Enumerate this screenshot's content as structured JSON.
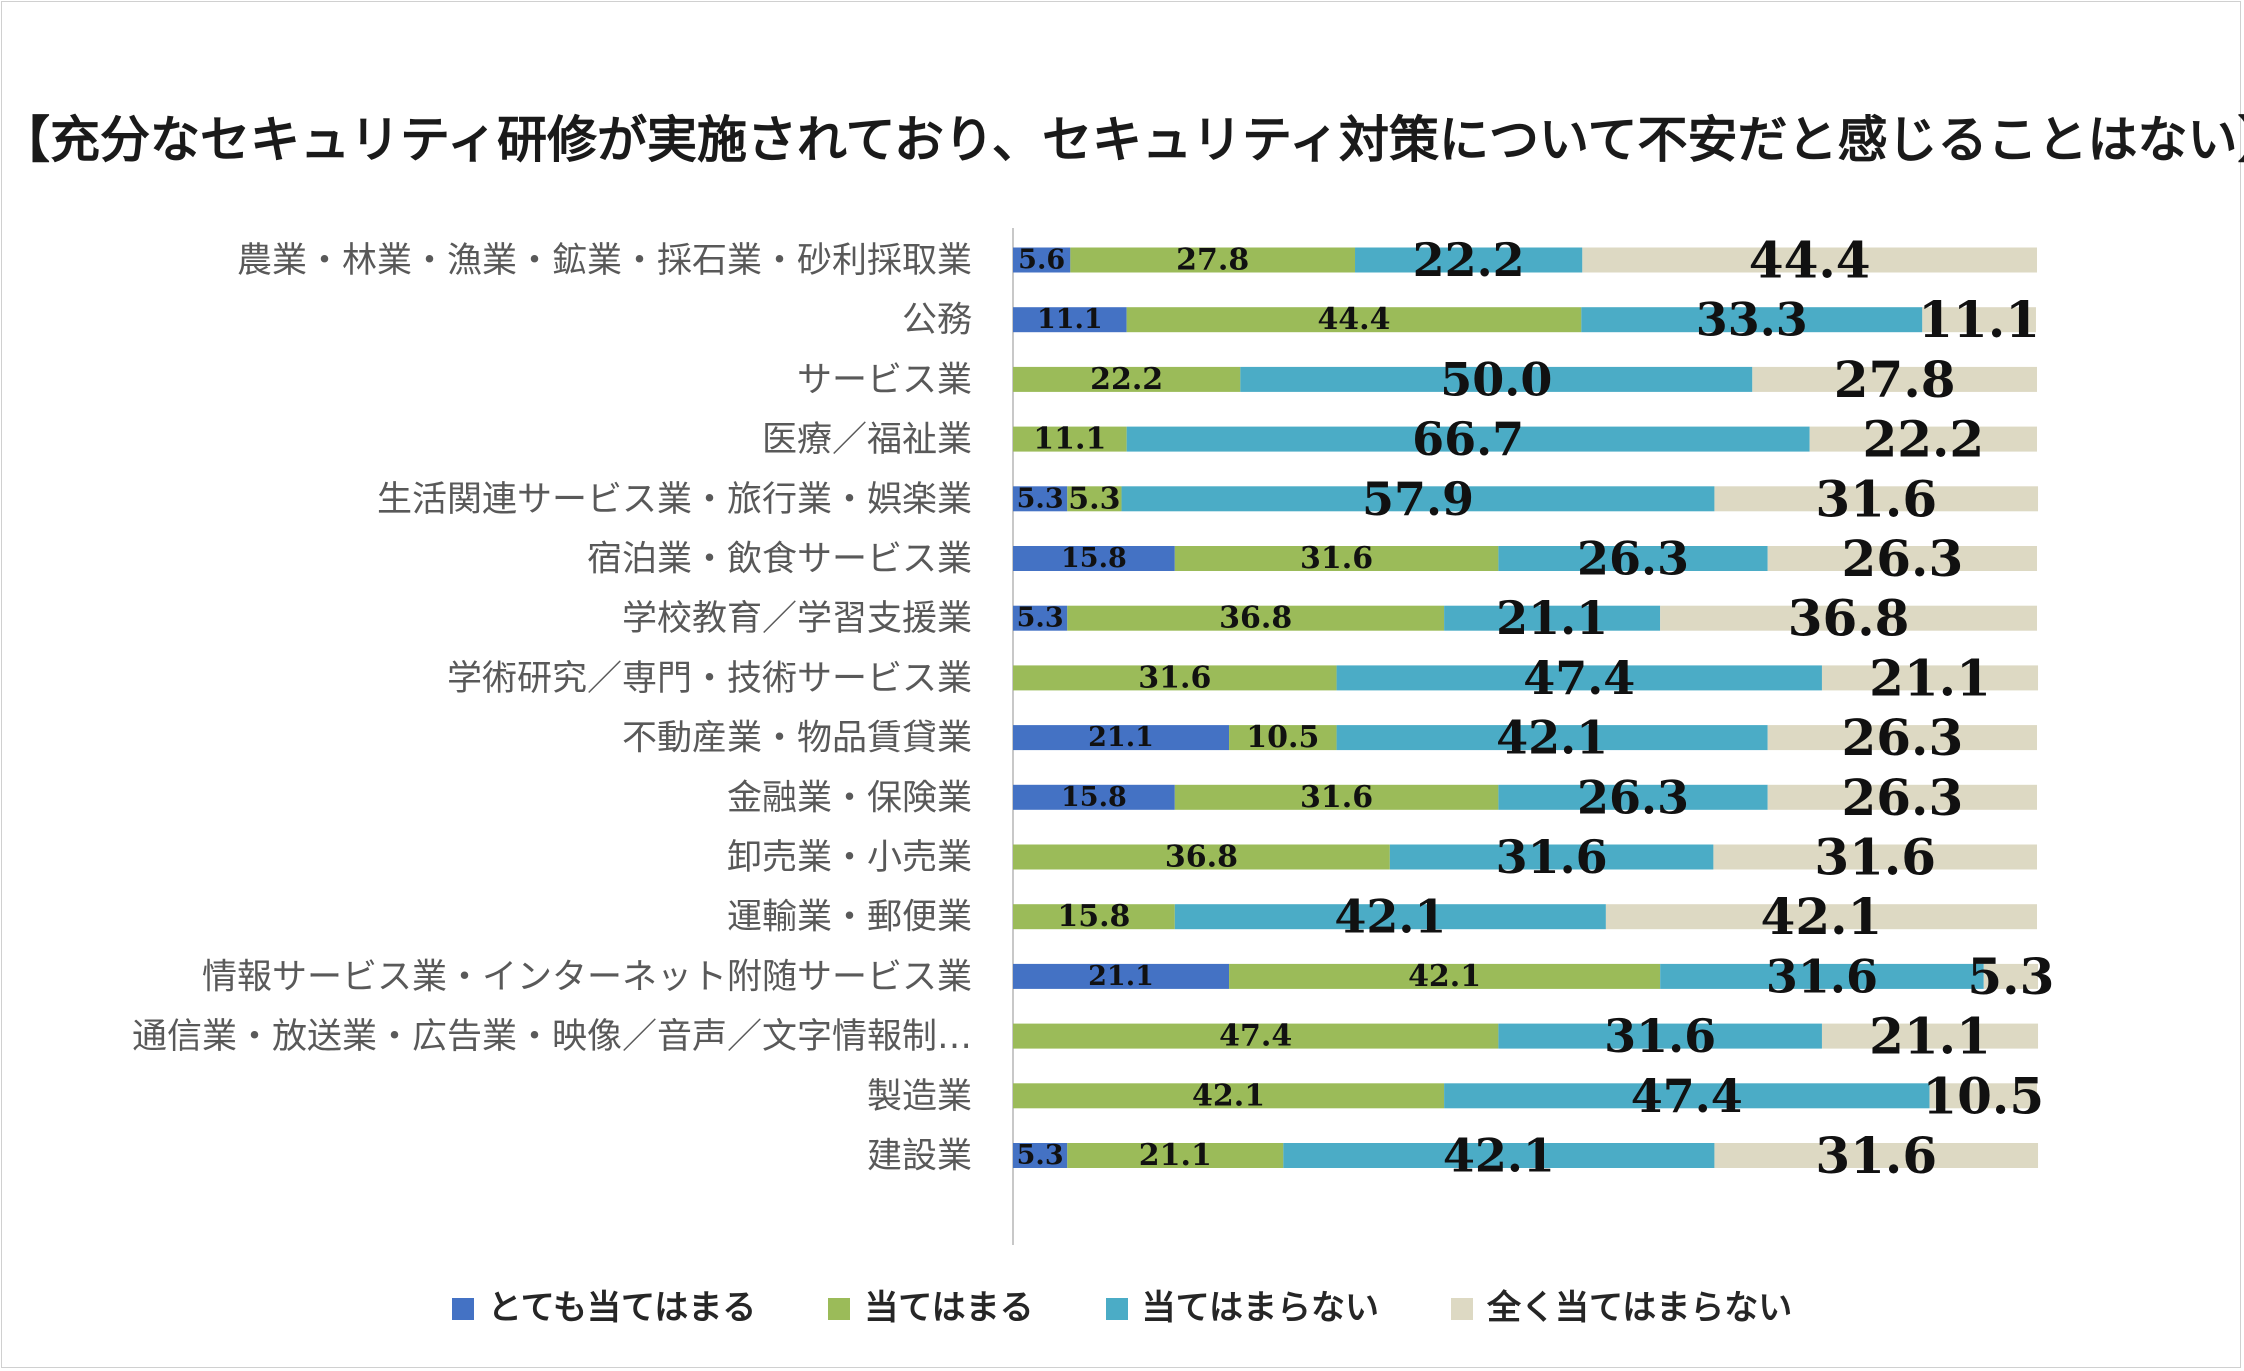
{
  "chart_data": {
    "type": "bar",
    "orientation": "horizontal",
    "stacked": true,
    "title": "【充分なセキュリティ研修が実施されており、セキュリティ対策について不安だと感じることはない】",
    "categories": [
      "農業・林業・漁業・鉱業・採石業・砂利採取業",
      "公務",
      "サービス業",
      "医療／福祉業",
      "生活関連サービス業・旅行業・娯楽業",
      "宿泊業・飲食サービス業",
      "学校教育／学習支援業",
      "学術研究／専門・技術サービス業",
      "不動産業・物品賃貸業",
      "金融業・保険業",
      "卸売業・小売業",
      "運輸業・郵便業",
      "情報サービス業・インターネット附随サービス業",
      "通信業・放送業・広告業・映像／音声／文字情報制…",
      "製造業",
      "建設業"
    ],
    "series": [
      {
        "name": "とても当てはまる",
        "color": "#4472c4",
        "values": [
          5.6,
          11.1,
          0,
          0,
          5.3,
          15.8,
          5.3,
          0,
          21.1,
          15.8,
          0,
          0,
          21.1,
          0,
          0,
          5.3
        ]
      },
      {
        "name": "当てはまる",
        "color": "#9bbb59",
        "values": [
          27.8,
          44.4,
          22.2,
          11.1,
          5.3,
          31.6,
          36.8,
          31.6,
          10.5,
          31.6,
          36.8,
          15.8,
          42.1,
          47.4,
          42.1,
          21.1
        ]
      },
      {
        "name": "当てはまらない",
        "color": "#4bacc6",
        "values": [
          22.2,
          33.3,
          50.0,
          66.7,
          57.9,
          26.3,
          21.1,
          47.4,
          42.1,
          26.3,
          31.6,
          42.1,
          31.6,
          31.6,
          47.4,
          42.1
        ]
      },
      {
        "name": "全く当てはまらない",
        "color": "#ddd9c3",
        "values": [
          44.4,
          11.1,
          27.8,
          22.2,
          31.6,
          26.3,
          36.8,
          21.1,
          26.3,
          26.3,
          31.6,
          42.1,
          5.3,
          21.1,
          10.5,
          31.6
        ]
      }
    ],
    "value_labels": [
      [
        "5.6",
        "27.8",
        "22.2",
        "44.4"
      ],
      [
        "11.1",
        "44.4",
        "33.3",
        "11.1"
      ],
      [
        "",
        "22.2",
        "50.0",
        "27.8"
      ],
      [
        "",
        "11.1",
        "66.7",
        "22.2"
      ],
      [
        "5.3",
        "5.3",
        "57.9",
        "31.6"
      ],
      [
        "15.8",
        "31.6",
        "26.3",
        "26.3"
      ],
      [
        "5.3",
        "36.8",
        "21.1",
        "36.8"
      ],
      [
        "",
        "31.6",
        "47.4",
        "21.1"
      ],
      [
        "21.1",
        "10.5",
        "42.1",
        "26.3"
      ],
      [
        "15.8",
        "31.6",
        "26.3",
        "26.3"
      ],
      [
        "",
        "36.8",
        "31.6",
        "31.6"
      ],
      [
        "",
        "15.8",
        "42.1",
        "42.1"
      ],
      [
        "21.1",
        "42.1",
        "31.6",
        "5.3"
      ],
      [
        "",
        "47.4",
        "31.6",
        "21.1"
      ],
      [
        "",
        "42.1",
        "47.4",
        "10.5"
      ],
      [
        "5.3",
        "21.1",
        "42.1",
        "31.6"
      ]
    ],
    "xlim": [
      0,
      100
    ],
    "grid": false,
    "legend_position": "bottom"
  }
}
